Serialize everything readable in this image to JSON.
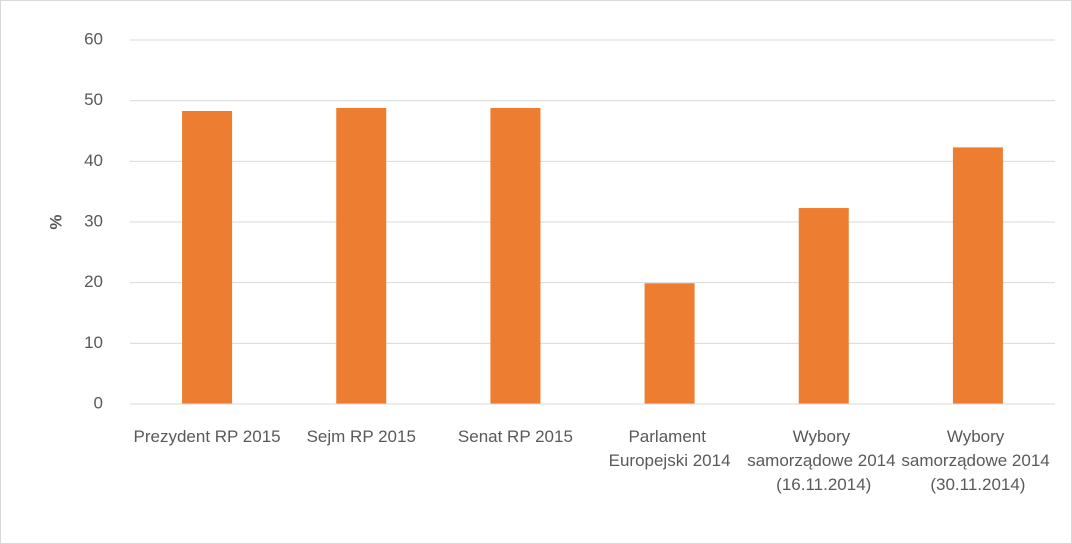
{
  "chart_data": {
    "type": "bar",
    "y_label": "%",
    "categories": [
      "Prezydent RP 2015",
      "Sejm RP 2015",
      "Senat RP 2015",
      "Parlament Europejski 2014",
      "Wybory samorządowe 2014 (16.11.2014)",
      "Wybory samorządowe 2014 (30.11.2014)"
    ],
    "values": [
      48.3,
      48.8,
      48.8,
      19.9,
      32.3,
      42.3
    ],
    "color": "#ed7d31",
    "ylim": [
      0,
      60
    ],
    "yticks": [
      0,
      10,
      20,
      30,
      40,
      50,
      60
    ],
    "grid": true
  }
}
